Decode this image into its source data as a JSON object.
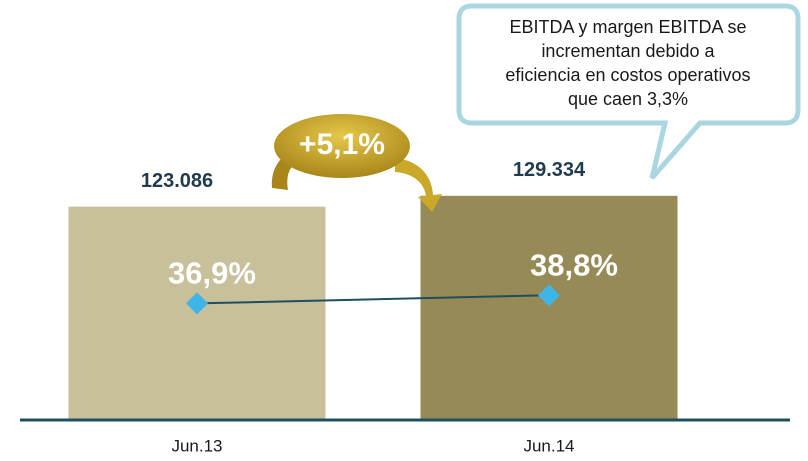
{
  "chart_data": {
    "type": "bar",
    "categories": [
      "Jun.13",
      "Jun.14"
    ],
    "ylim": [
      0,
      150000
    ],
    "y2lim": [
      10,
      70
    ],
    "series": [
      {
        "type": "bar",
        "values": [
          123086,
          129334
        ],
        "value_labels": [
          "123.086",
          "129.334"
        ],
        "colors": [
          "#c8bf9b",
          "#968b56"
        ]
      },
      {
        "type": "line",
        "axis": "y2",
        "values": [
          36.9,
          38.8
        ],
        "value_labels": [
          "36,9%",
          "38,8%"
        ],
        "color": "#1f4e5f",
        "marker_color": "#3db5e6"
      }
    ],
    "growth_label": "+5,1%",
    "callout": [
      "EBITDA y margen EBITDA se",
      "incrementan debido a",
      "eficiencia en costos operativos",
      "que caen 3,3%"
    ]
  }
}
